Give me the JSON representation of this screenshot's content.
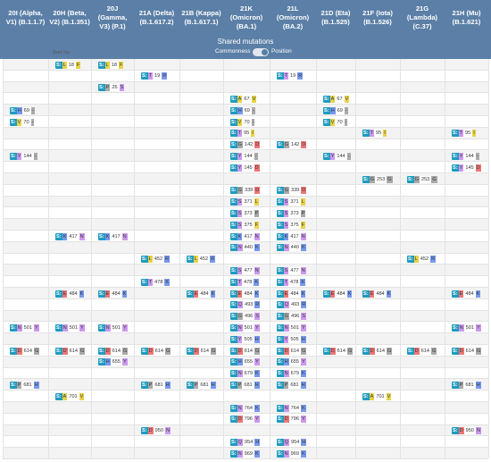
{
  "colors": {
    "header": "#5b7fa6",
    "gene_s": "#1f9bbf",
    "row_alt": "#f3f3f3",
    "grid": "#e3e3e3"
  },
  "columns": [
    {
      "id": "20I",
      "label": "20I (Alpha,\nV1) (B.1.1.7)"
    },
    {
      "id": "20H",
      "label": "20H (Beta,\nV2) (B.1.351)"
    },
    {
      "id": "20J",
      "label": "20J (Gamma,\nV3) (P.1)"
    },
    {
      "id": "21A",
      "label": "21A (Delta)\n(B.1.617.2)"
    },
    {
      "id": "21B",
      "label": "21B (Kappa)\n(B.1.617.1)"
    },
    {
      "id": "21K",
      "label": "21K\n(Omicron)\n(BA.1)"
    },
    {
      "id": "21L",
      "label": "21L\n(Omicron)\n(BA.2)"
    },
    {
      "id": "21D",
      "label": "21D (Eta)\n(B.1.525)"
    },
    {
      "id": "21F",
      "label": "21F (Iota)\n(B.1.526)"
    },
    {
      "id": "21G",
      "label": "21G\n(Lambda)\n(C.37)"
    },
    {
      "id": "21H",
      "label": "21H (Mu)\n(B.1.621)"
    }
  ],
  "shared_title": "Shared mutations",
  "sort_label": "Sort by:",
  "commonness_label": "Commonness",
  "position_label": "Position",
  "rows": [
    {
      "from": "L",
      "pos": "18",
      "to": "F",
      "cols": [
        1,
        2
      ]
    },
    {
      "from": "T",
      "pos": "19",
      "to": "R",
      "cols": [
        3,
        6
      ]
    },
    {
      "from": "P",
      "pos": "26",
      "to": "S",
      "cols": [
        2
      ]
    },
    {
      "from": "A",
      "pos": "67",
      "to": "V",
      "cols": [
        5,
        7
      ]
    },
    {
      "from": "H",
      "pos": "69",
      "to": "-",
      "cols": [
        0,
        5,
        7
      ]
    },
    {
      "from": "V",
      "pos": "70",
      "to": "-",
      "cols": [
        0,
        5,
        7
      ]
    },
    {
      "from": "T",
      "pos": "95",
      "to": "I",
      "cols": [
        5,
        8,
        10
      ]
    },
    {
      "from": "G",
      "pos": "142",
      "to": "D",
      "cols": [
        5,
        6
      ]
    },
    {
      "from": "Y",
      "pos": "144",
      "to": "-",
      "cols": [
        0,
        5,
        7,
        10
      ]
    },
    {
      "from": "Y",
      "pos": "145",
      "to": "D",
      "cols": [
        5,
        10
      ]
    },
    {
      "from": "G",
      "pos": "253",
      "to": "G",
      "cols": [
        8,
        9
      ]
    },
    {
      "from": "G",
      "pos": "339",
      "to": "D",
      "cols": [
        5,
        6
      ]
    },
    {
      "from": "S",
      "pos": "371",
      "to": "L",
      "cols": [
        5,
        6
      ]
    },
    {
      "from": "S",
      "pos": "373",
      "to": "P",
      "cols": [
        5,
        6
      ]
    },
    {
      "from": "S",
      "pos": "375",
      "to": "F",
      "cols": [
        5,
        6
      ]
    },
    {
      "from": "K",
      "pos": "417",
      "to": "N",
      "cols": [
        1,
        2,
        5,
        6
      ]
    },
    {
      "from": "N",
      "pos": "440",
      "to": "K",
      "cols": [
        5,
        6
      ]
    },
    {
      "from": "L",
      "pos": "452",
      "to": "R",
      "cols": [
        3,
        4,
        9
      ]
    },
    {
      "from": "S",
      "pos": "477",
      "to": "N",
      "cols": [
        5,
        6
      ]
    },
    {
      "from": "T",
      "pos": "478",
      "to": "K",
      "cols": [
        3,
        5,
        6
      ]
    },
    {
      "from": "E",
      "pos": "484",
      "to": "K",
      "cols": [
        1,
        2,
        4,
        5,
        6,
        7,
        8,
        10
      ]
    },
    {
      "from": "Q",
      "pos": "493",
      "to": "R",
      "cols": [
        5,
        6
      ]
    },
    {
      "from": "G",
      "pos": "496",
      "to": "S",
      "cols": [
        5,
        6
      ]
    },
    {
      "from": "N",
      "pos": "501",
      "to": "Y",
      "cols": [
        0,
        1,
        2,
        5,
        6,
        10
      ]
    },
    {
      "from": "Y",
      "pos": "505",
      "to": "H",
      "cols": [
        5,
        6
      ]
    },
    {
      "from": "D",
      "pos": "614",
      "to": "G",
      "cols": [
        0,
        1,
        2,
        3,
        4,
        5,
        6,
        7,
        8,
        9,
        10
      ]
    },
    {
      "from": "H",
      "pos": "655",
      "to": "Y",
      "cols": [
        2,
        5,
        6
      ]
    },
    {
      "from": "N",
      "pos": "679",
      "to": "K",
      "cols": [
        5,
        6
      ]
    },
    {
      "from": "P",
      "pos": "681",
      "to": "H",
      "cols": [
        0,
        3,
        4,
        5,
        6,
        10
      ]
    },
    {
      "from": "A",
      "pos": "701",
      "to": "V",
      "cols": [
        1,
        8
      ]
    },
    {
      "from": "N",
      "pos": "764",
      "to": "K",
      "cols": [
        5,
        6
      ]
    },
    {
      "from": "D",
      "pos": "796",
      "to": "Y",
      "cols": [
        5,
        6
      ]
    },
    {
      "from": "D",
      "pos": "950",
      "to": "N",
      "cols": [
        3,
        10
      ]
    },
    {
      "from": "Q",
      "pos": "954",
      "to": "H",
      "cols": [
        5,
        6
      ]
    },
    {
      "from": "N",
      "pos": "969",
      "to": "K",
      "cols": [
        5,
        6
      ]
    }
  ]
}
